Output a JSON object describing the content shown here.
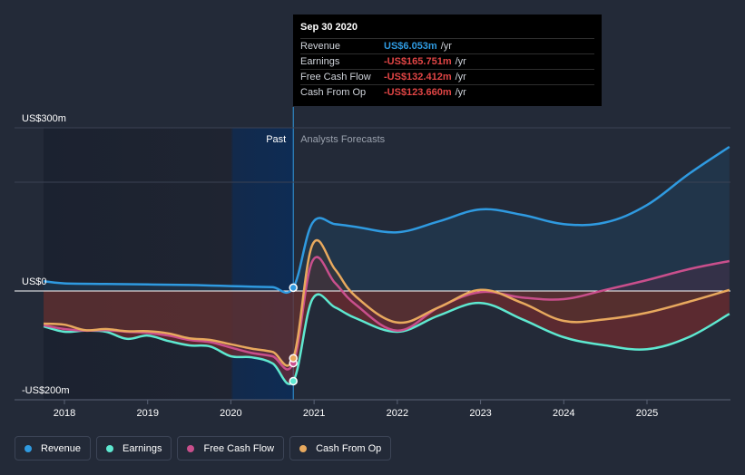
{
  "tooltip": {
    "date": "Sep 30 2020",
    "rows": [
      {
        "name": "Revenue",
        "value": "US$6.053m",
        "unit": "/yr",
        "color": "#2f9ae0"
      },
      {
        "name": "Earnings",
        "value": "-US$165.751m",
        "unit": "/yr",
        "color": "#e04545"
      },
      {
        "name": "Free Cash Flow",
        "value": "-US$132.412m",
        "unit": "/yr",
        "color": "#e04545"
      },
      {
        "name": "Cash From Op",
        "value": "-US$123.660m",
        "unit": "/yr",
        "color": "#e04545"
      }
    ]
  },
  "legend": [
    {
      "label": "Revenue",
      "color": "#2f9ae0"
    },
    {
      "label": "Earnings",
      "color": "#5ee8d0"
    },
    {
      "label": "Free Cash Flow",
      "color": "#c94f8c"
    },
    {
      "label": "Cash From Op",
      "color": "#e8a95e"
    }
  ],
  "chart_data": {
    "type": "line",
    "y_unit": "US$m",
    "yticks": [
      {
        "value": 300,
        "label": "US$300m"
      },
      {
        "value": 0,
        "label": "US$0"
      },
      {
        "value": -200,
        "label": "-US$200m"
      }
    ],
    "xticks": [
      {
        "value": 2018,
        "label": "2018"
      },
      {
        "value": 2019,
        "label": "2019"
      },
      {
        "value": 2020,
        "label": "2020"
      },
      {
        "value": 2021,
        "label": "2021"
      },
      {
        "value": 2022,
        "label": "2022"
      },
      {
        "value": 2023,
        "label": "2023"
      },
      {
        "value": 2024,
        "label": "2024"
      },
      {
        "value": 2025,
        "label": "2025"
      }
    ],
    "xlim": [
      2017.5,
      2025.99
    ],
    "ylim": [
      -200,
      300
    ],
    "divider_x": 2020.75,
    "past_label": "Past",
    "forecast_label": "Analysts Forecasts",
    "colors": {
      "background": "#232a38",
      "past_band": "#0e2a52",
      "grid": "#3b4254",
      "zero": "#ffffff"
    },
    "series": [
      {
        "name": "Revenue",
        "color": "#2f9ae0",
        "x": [
          2017.75,
          2018.0,
          2018.5,
          2019.0,
          2019.5,
          2019.75,
          2020.0,
          2020.25,
          2020.5,
          2020.75,
          2020.98,
          2021.25,
          2021.5,
          2022.0,
          2022.5,
          2023.0,
          2023.5,
          2024.0,
          2024.5,
          2025.0,
          2025.5,
          2025.99
        ],
        "y": [
          18,
          14,
          13,
          12,
          11,
          10,
          9,
          8,
          7,
          6.053,
          125,
          123,
          118,
          108,
          128,
          150,
          140,
          123,
          126,
          158,
          215,
          265
        ]
      },
      {
        "name": "Earnings",
        "color": "#5ee8d0",
        "x": [
          2017.75,
          2018.0,
          2018.25,
          2018.5,
          2018.75,
          2019.0,
          2019.25,
          2019.5,
          2019.75,
          2020.0,
          2020.25,
          2020.5,
          2020.75,
          2020.98,
          2021.25,
          2021.5,
          2022.0,
          2022.5,
          2023.0,
          2023.5,
          2024.0,
          2024.5,
          2025.0,
          2025.5,
          2025.99
        ],
        "y": [
          -65,
          -75,
          -73,
          -75,
          -88,
          -82,
          -92,
          -100,
          -102,
          -120,
          -122,
          -133,
          -165.751,
          -15,
          -30,
          -50,
          -75,
          -45,
          -22,
          -52,
          -85,
          -100,
          -107,
          -85,
          -42
        ]
      },
      {
        "name": "Free Cash Flow",
        "color": "#c94f8c",
        "x": [
          2017.75,
          2018.0,
          2018.25,
          2018.5,
          2018.75,
          2019.0,
          2019.25,
          2019.5,
          2019.75,
          2020.0,
          2020.25,
          2020.5,
          2020.75,
          2020.98,
          2021.25,
          2021.5,
          2022.0,
          2022.5,
          2023.0,
          2023.5,
          2024.0,
          2024.5,
          2025.0,
          2025.5,
          2025.99
        ],
        "y": [
          -63,
          -70,
          -73,
          -72,
          -75,
          -77,
          -82,
          -90,
          -94,
          -104,
          -114,
          -120,
          -132.412,
          55,
          15,
          -25,
          -73,
          -30,
          -2,
          -12,
          -15,
          2,
          20,
          40,
          55
        ]
      },
      {
        "name": "Cash From Op",
        "color": "#e8a95e",
        "x": [
          2017.75,
          2018.0,
          2018.25,
          2018.5,
          2018.75,
          2019.0,
          2019.25,
          2019.5,
          2019.75,
          2020.0,
          2020.25,
          2020.5,
          2020.75,
          2020.98,
          2021.25,
          2021.5,
          2022.0,
          2022.5,
          2023.0,
          2023.5,
          2024.0,
          2024.5,
          2025.0,
          2025.5,
          2025.99
        ],
        "y": [
          -60,
          -62,
          -72,
          -70,
          -74,
          -74,
          -78,
          -87,
          -90,
          -98,
          -106,
          -112,
          -123.66,
          85,
          40,
          -10,
          -58,
          -30,
          2,
          -22,
          -55,
          -52,
          -40,
          -20,
          2
        ]
      }
    ]
  }
}
